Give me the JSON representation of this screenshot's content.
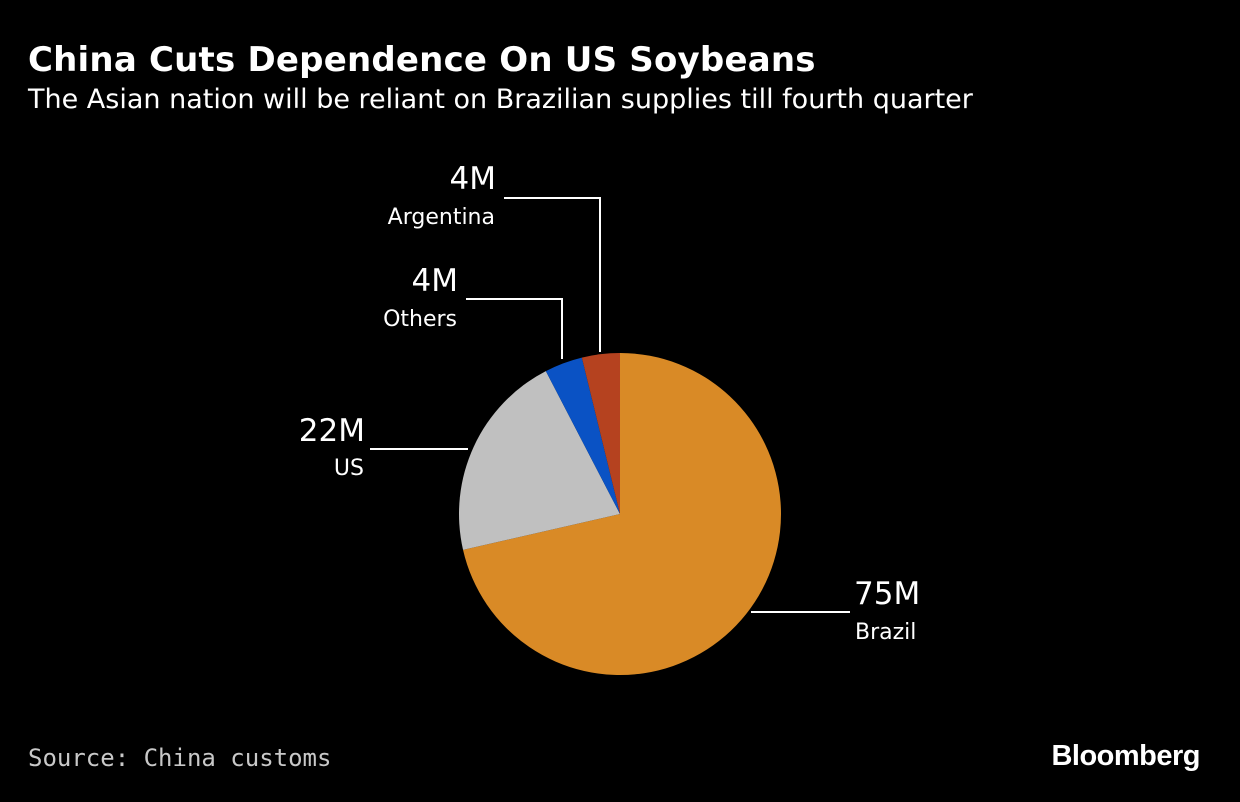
{
  "title": "China Cuts Dependence On US Soybeans",
  "subtitle": "The Asian nation will be reliant on Brazilian supplies till fourth quarter",
  "source": "Source: China customs",
  "brand": "Bloomberg",
  "chart_data": {
    "type": "pie",
    "slices": [
      {
        "label": "Brazil",
        "value": 75,
        "display": "75M",
        "color": "#d98a26"
      },
      {
        "label": "US",
        "value": 22,
        "display": "22M",
        "color": "#c0c0c0"
      },
      {
        "label": "Others",
        "value": 4,
        "display": "4M",
        "color": "#0a52c4"
      },
      {
        "label": "Argentina",
        "value": 4,
        "display": "4M",
        "color": "#b5421f"
      }
    ]
  }
}
